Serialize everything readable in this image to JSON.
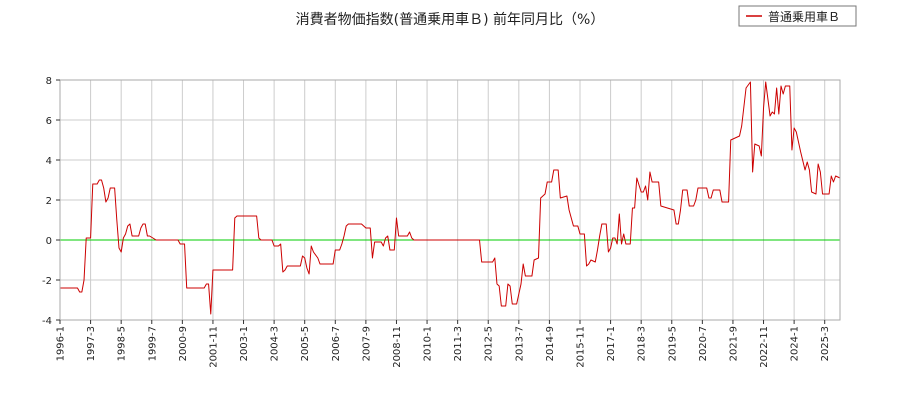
{
  "chart_data": {
    "type": "line",
    "title": "消費者物価指数(普通乗用車Ｂ) 前年同月比（%）",
    "xlabel": "",
    "ylabel": "",
    "ylim": [
      -4,
      8
    ],
    "y_ticks": [
      -4,
      -2,
      0,
      2,
      4,
      6,
      8
    ],
    "x_ticks": [
      "1996-1",
      "1997-3",
      "1998-5",
      "1999-7",
      "2000-9",
      "2001-11",
      "2003-1",
      "2004-3",
      "2005-5",
      "2006-7",
      "2007-9",
      "2008-11",
      "2010-1",
      "2011-3",
      "2012-5",
      "2013-7",
      "2014-9",
      "2015-11",
      "2017-1",
      "2018-3",
      "2019-5",
      "2020-7",
      "2021-9",
      "2022-11",
      "2024-1",
      "2025-3"
    ],
    "x_range": [
      "1996-01",
      "2025-10"
    ],
    "grid": true,
    "legend_position": "top-right",
    "zero_line_color": "#00cc00",
    "series": [
      {
        "name": "普通乗用車Ｂ",
        "color": "#cc0000",
        "points": [
          [
            "1996-01",
            -2.4
          ],
          [
            "1996-09",
            -2.4
          ],
          [
            "1996-10",
            -2.6
          ],
          [
            "1996-11",
            -2.6
          ],
          [
            "1996-12",
            -2.0
          ],
          [
            "1997-01",
            0.1
          ],
          [
            "1997-03",
            0.1
          ],
          [
            "1997-04",
            2.8
          ],
          [
            "1997-06",
            2.8
          ],
          [
            "1997-07",
            3.0
          ],
          [
            "1997-08",
            3.0
          ],
          [
            "1997-09",
            2.6
          ],
          [
            "1997-10",
            1.9
          ],
          [
            "1997-11",
            2.1
          ],
          [
            "1997-12",
            2.6
          ],
          [
            "1998-02",
            2.6
          ],
          [
            "1998-03",
            1.0
          ],
          [
            "1998-04",
            -0.4
          ],
          [
            "1998-05",
            -0.6
          ],
          [
            "1998-06",
            0.1
          ],
          [
            "1998-07",
            0.3
          ],
          [
            "1998-08",
            0.7
          ],
          [
            "1998-09",
            0.8
          ],
          [
            "1998-10",
            0.2
          ],
          [
            "1998-12",
            0.2
          ],
          [
            "1999-01",
            0.2
          ],
          [
            "1999-02",
            0.6
          ],
          [
            "1999-03",
            0.8
          ],
          [
            "1999-04",
            0.8
          ],
          [
            "1999-05",
            0.2
          ],
          [
            "1999-06",
            0.2
          ],
          [
            "1999-09",
            0.0
          ],
          [
            "2000-07",
            0.0
          ],
          [
            "2000-08",
            -0.2
          ],
          [
            "2000-10",
            -0.2
          ],
          [
            "2000-11",
            -2.4
          ],
          [
            "2001-07",
            -2.4
          ],
          [
            "2001-08",
            -2.2
          ],
          [
            "2001-09",
            -2.2
          ],
          [
            "2001-10",
            -3.7
          ],
          [
            "2001-11",
            -1.5
          ],
          [
            "2002-08",
            -1.5
          ],
          [
            "2002-09",
            1.1
          ],
          [
            "2002-10",
            1.2
          ],
          [
            "2003-07",
            1.2
          ],
          [
            "2003-08",
            0.1
          ],
          [
            "2003-09",
            0.0
          ],
          [
            "2004-02",
            0.0
          ],
          [
            "2004-03",
            -0.3
          ],
          [
            "2004-05",
            -0.3
          ],
          [
            "2004-06",
            -0.2
          ],
          [
            "2004-07",
            -1.6
          ],
          [
            "2004-08",
            -1.5
          ],
          [
            "2004-09",
            -1.3
          ],
          [
            "2005-03",
            -1.3
          ],
          [
            "2005-04",
            -0.8
          ],
          [
            "2005-05",
            -0.9
          ],
          [
            "2005-06",
            -1.4
          ],
          [
            "2005-07",
            -1.7
          ],
          [
            "2005-08",
            -0.3
          ],
          [
            "2005-09",
            -0.6
          ],
          [
            "2005-11",
            -0.9
          ],
          [
            "2005-12",
            -1.2
          ],
          [
            "2006-06",
            -1.2
          ],
          [
            "2006-07",
            -0.5
          ],
          [
            "2006-09",
            -0.5
          ],
          [
            "2006-10",
            -0.2
          ],
          [
            "2006-11",
            0.2
          ],
          [
            "2006-12",
            0.7
          ],
          [
            "2007-01",
            0.8
          ],
          [
            "2007-07",
            0.8
          ],
          [
            "2007-08",
            0.7
          ],
          [
            "2007-09",
            0.6
          ],
          [
            "2007-11",
            0.6
          ],
          [
            "2007-12",
            -0.9
          ],
          [
            "2008-01",
            -0.1
          ],
          [
            "2008-04",
            -0.1
          ],
          [
            "2008-05",
            -0.3
          ],
          [
            "2008-06",
            0.1
          ],
          [
            "2008-07",
            0.2
          ],
          [
            "2008-08",
            -0.5
          ],
          [
            "2008-10",
            -0.5
          ],
          [
            "2008-11",
            1.1
          ],
          [
            "2008-12",
            0.2
          ],
          [
            "2009-04",
            0.2
          ],
          [
            "2009-05",
            0.4
          ],
          [
            "2009-06",
            0.1
          ],
          [
            "2009-07",
            0.0
          ],
          [
            "2012-01",
            0.0
          ],
          [
            "2012-02",
            -1.1
          ],
          [
            "2012-07",
            -1.1
          ],
          [
            "2012-08",
            -0.9
          ],
          [
            "2012-09",
            -2.2
          ],
          [
            "2012-10",
            -2.3
          ],
          [
            "2012-11",
            -3.3
          ],
          [
            "2013-01",
            -3.3
          ],
          [
            "2013-02",
            -2.2
          ],
          [
            "2013-03",
            -2.3
          ],
          [
            "2013-04",
            -3.2
          ],
          [
            "2013-06",
            -3.2
          ],
          [
            "2013-07",
            -2.7
          ],
          [
            "2013-08",
            -2.2
          ],
          [
            "2013-09",
            -1.2
          ],
          [
            "2013-10",
            -1.8
          ],
          [
            "2014-01",
            -1.8
          ],
          [
            "2014-02",
            -1.0
          ],
          [
            "2014-04",
            -0.9
          ],
          [
            "2014-05",
            2.1
          ],
          [
            "2014-07",
            2.3
          ],
          [
            "2014-08",
            2.9
          ],
          [
            "2014-10",
            2.9
          ],
          [
            "2014-11",
            3.5
          ],
          [
            "2015-01",
            3.5
          ],
          [
            "2015-02",
            2.1
          ],
          [
            "2015-05",
            2.2
          ],
          [
            "2015-06",
            1.5
          ],
          [
            "2015-07",
            1.1
          ],
          [
            "2015-08",
            0.7
          ],
          [
            "2015-10",
            0.7
          ],
          [
            "2015-11",
            0.3
          ],
          [
            "2016-01",
            0.3
          ],
          [
            "2016-02",
            -1.3
          ],
          [
            "2016-03",
            -1.2
          ],
          [
            "2016-04",
            -1.0
          ],
          [
            "2016-06",
            -1.1
          ],
          [
            "2016-07",
            -0.5
          ],
          [
            "2016-08",
            0.2
          ],
          [
            "2016-09",
            0.8
          ],
          [
            "2016-11",
            0.8
          ],
          [
            "2016-12",
            -0.6
          ],
          [
            "2017-01",
            -0.4
          ],
          [
            "2017-02",
            0.1
          ],
          [
            "2017-03",
            0.1
          ],
          [
            "2017-04",
            -0.2
          ],
          [
            "2017-05",
            1.3
          ],
          [
            "2017-06",
            -0.2
          ],
          [
            "2017-07",
            0.3
          ],
          [
            "2017-08",
            -0.2
          ],
          [
            "2017-10",
            -0.2
          ],
          [
            "2017-11",
            1.6
          ],
          [
            "2017-12",
            1.6
          ],
          [
            "2018-01",
            3.1
          ],
          [
            "2018-03",
            2.4
          ],
          [
            "2018-04",
            2.4
          ],
          [
            "2018-05",
            2.7
          ],
          [
            "2018-06",
            2.0
          ],
          [
            "2018-07",
            3.4
          ],
          [
            "2018-08",
            2.9
          ],
          [
            "2018-11",
            2.9
          ],
          [
            "2018-12",
            1.7
          ],
          [
            "2019-06",
            1.5
          ],
          [
            "2019-07",
            0.8
          ],
          [
            "2019-08",
            0.8
          ],
          [
            "2019-09",
            1.5
          ],
          [
            "2019-10",
            2.5
          ],
          [
            "2019-12",
            2.5
          ],
          [
            "2020-01",
            1.7
          ],
          [
            "2020-03",
            1.7
          ],
          [
            "2020-04",
            2.0
          ],
          [
            "2020-05",
            2.6
          ],
          [
            "2020-09",
            2.6
          ],
          [
            "2020-10",
            2.1
          ],
          [
            "2020-11",
            2.1
          ],
          [
            "2020-12",
            2.5
          ],
          [
            "2021-03",
            2.5
          ],
          [
            "2021-04",
            1.9
          ],
          [
            "2021-07",
            1.9
          ],
          [
            "2021-08",
            5.0
          ],
          [
            "2021-10",
            5.1
          ],
          [
            "2021-12",
            5.2
          ],
          [
            "2022-01",
            5.7
          ],
          [
            "2022-03",
            7.6
          ],
          [
            "2022-05",
            7.9
          ],
          [
            "2022-06",
            3.4
          ],
          [
            "2022-07",
            4.8
          ],
          [
            "2022-09",
            4.7
          ],
          [
            "2022-10",
            4.2
          ],
          [
            "2022-11",
            6.6
          ],
          [
            "2022-12",
            7.9
          ],
          [
            "2023-02",
            6.2
          ],
          [
            "2023-03",
            6.4
          ],
          [
            "2023-04",
            6.3
          ],
          [
            "2023-05",
            7.6
          ],
          [
            "2023-06",
            6.3
          ],
          [
            "2023-07",
            7.7
          ],
          [
            "2023-08",
            7.3
          ],
          [
            "2023-09",
            7.7
          ],
          [
            "2023-11",
            7.7
          ],
          [
            "2023-12",
            4.5
          ],
          [
            "2024-01",
            5.6
          ],
          [
            "2024-02",
            5.4
          ],
          [
            "2024-03",
            4.9
          ],
          [
            "2024-04",
            4.4
          ],
          [
            "2024-06",
            3.5
          ],
          [
            "2024-07",
            3.9
          ],
          [
            "2024-08",
            3.5
          ],
          [
            "2024-09",
            2.4
          ],
          [
            "2024-11",
            2.3
          ],
          [
            "2024-12",
            3.8
          ],
          [
            "2025-01",
            3.4
          ],
          [
            "2025-02",
            2.3
          ],
          [
            "2025-05",
            2.3
          ],
          [
            "2025-06",
            3.2
          ],
          [
            "2025-07",
            2.9
          ],
          [
            "2025-08",
            3.2
          ],
          [
            "2025-10",
            3.1
          ]
        ]
      }
    ]
  }
}
